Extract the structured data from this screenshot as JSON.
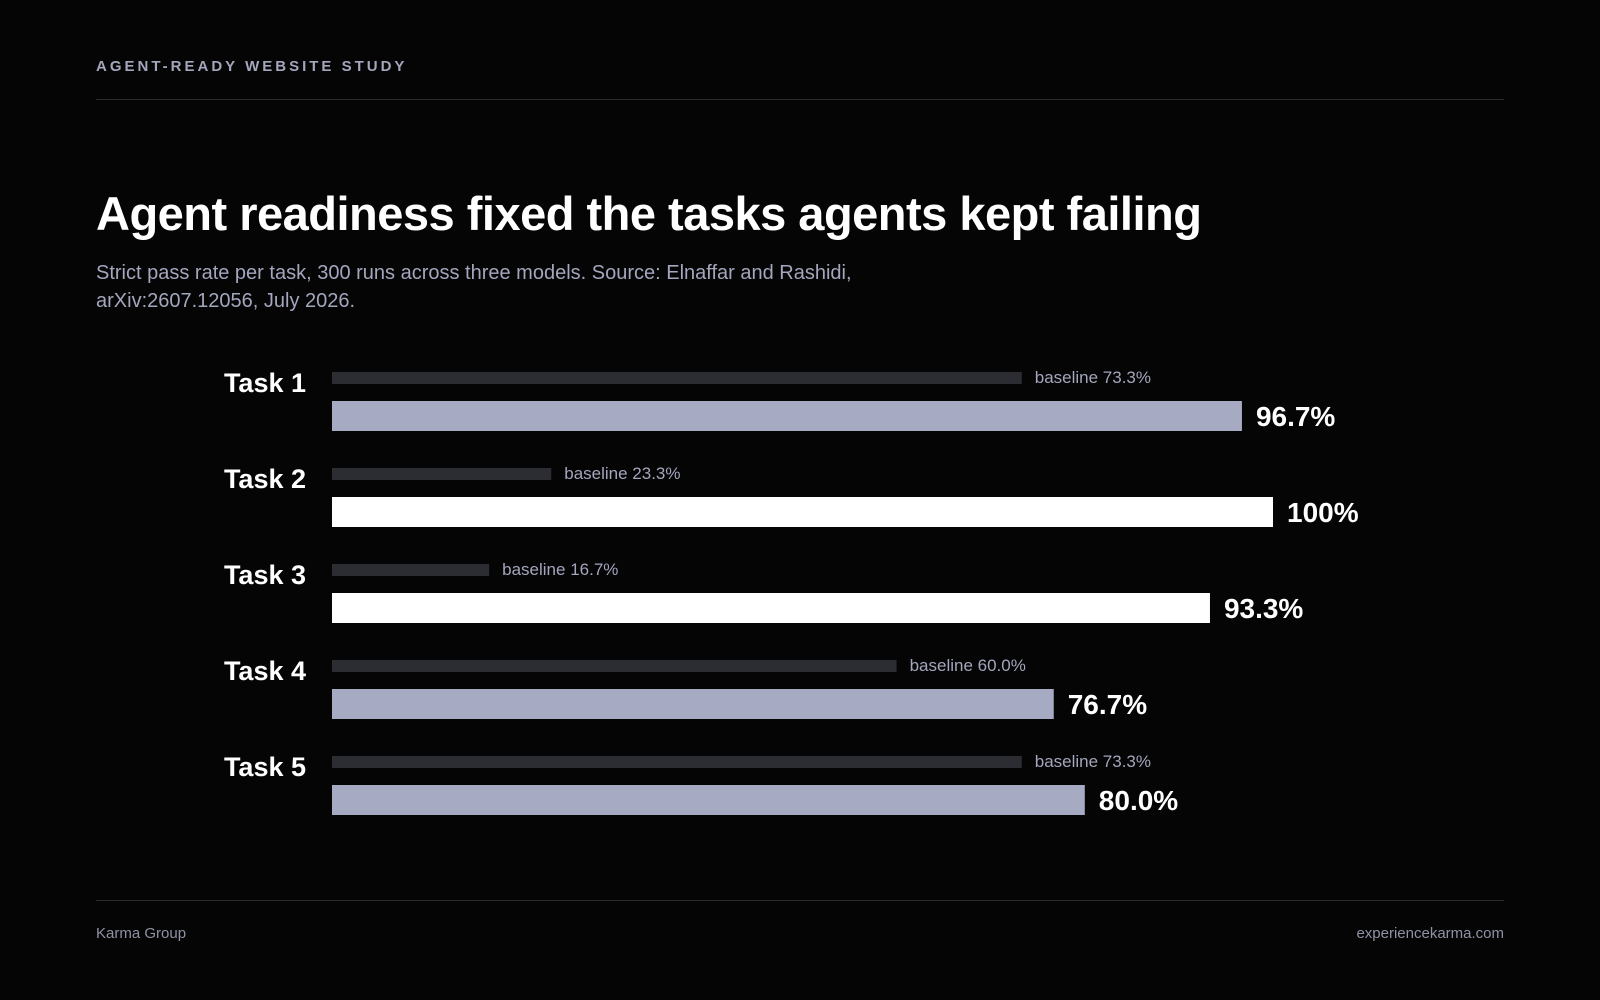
{
  "header": {
    "eyebrow": "AGENT-READY WEBSITE STUDY",
    "title": "Agent readiness fixed the tasks agents kept failing",
    "subtitle": "Strict pass rate per task, 300 runs across three models. Source: Elnaffar and Rashidi, arXiv:2607.12056, July 2026."
  },
  "chart_data": {
    "type": "bar",
    "orientation": "horizontal",
    "categories": [
      "Task 1",
      "Task 2",
      "Task 3",
      "Task 4",
      "Task 5"
    ],
    "series": [
      {
        "name": "baseline",
        "values": [
          73.3,
          23.3,
          16.7,
          60.0,
          73.3
        ]
      },
      {
        "values": [
          96.7,
          100,
          93.3,
          76.7,
          80.0
        ]
      }
    ],
    "baseline_labels": [
      "baseline 73.3%",
      "baseline 23.3%",
      "baseline 16.7%",
      "baseline 60.0%",
      "baseline 73.3%"
    ],
    "value_labels": [
      "96.7%",
      "100%",
      "93.3%",
      "76.7%",
      "80.0%"
    ],
    "xlim": [
      0,
      100
    ],
    "grid": false,
    "colors": {
      "baseline": "#2c2c33",
      "highlight": "#ffffff",
      "regular": "#a7aac3",
      "baseline_label": "#a3a6bd",
      "value_label": "#ffffff",
      "category_label": "#ffffff"
    },
    "highlighted": [
      false,
      true,
      true,
      false,
      false
    ]
  },
  "footer": {
    "left": "Karma Group",
    "right": "experiencekarma.com"
  }
}
